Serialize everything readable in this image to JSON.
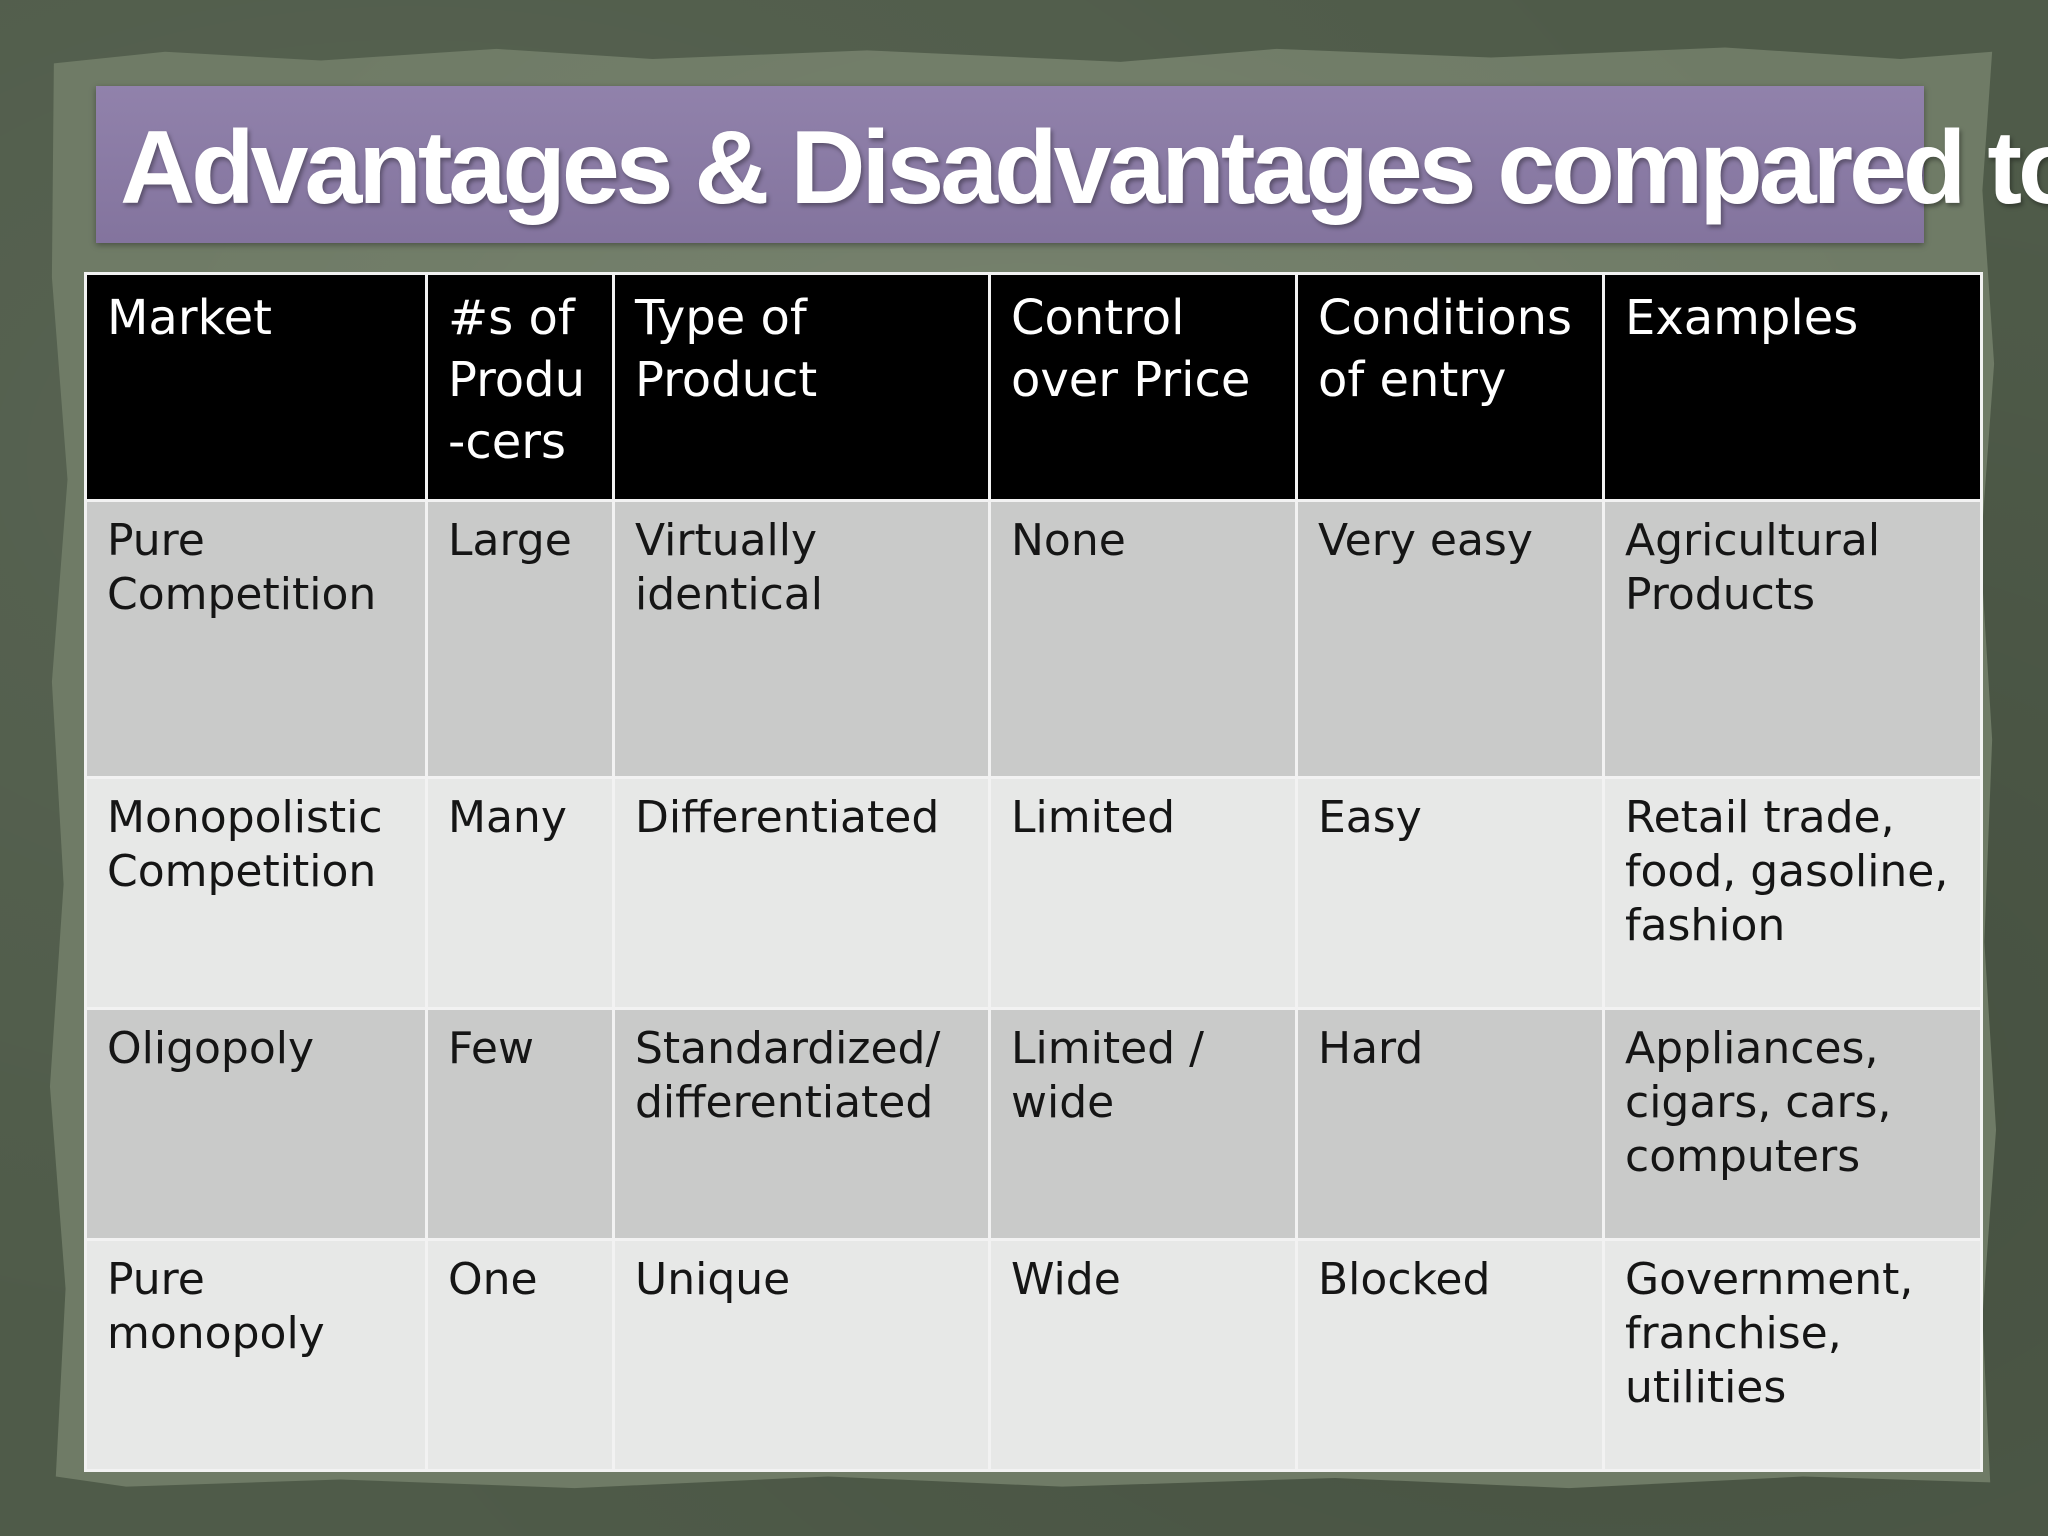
{
  "slide": {
    "title": "Advantages & Disadvantages compared to"
  },
  "table": {
    "headers": [
      "Market",
      "#s of Produ -cers",
      "Type of Product",
      "Control over Price",
      "Conditions of entry",
      "Examples"
    ],
    "rows": [
      [
        "Pure Competition",
        "Large",
        "Virtually identical",
        "None",
        "Very easy",
        "Agricultural Products"
      ],
      [
        "Monopolistic Competition",
        "Many",
        "Differentiated",
        "Limited",
        "Easy",
        "Retail trade, food, gasoline, fashion"
      ],
      [
        "Oligopoly",
        "Few",
        "Standardized/ differentiated",
        "Limited / wide",
        "Hard",
        "Appliances, cigars, cars, computers"
      ],
      [
        "Pure monopoly",
        "One",
        "Unique",
        "Wide",
        "Blocked",
        "Government, franchise, utilities"
      ]
    ]
  },
  "colors": {
    "title_bar": "#8a7aa6",
    "header_bg": "#000000",
    "row_dark": "#c9cac9",
    "row_light": "#e7e8e7",
    "background": "#4f5b49"
  }
}
